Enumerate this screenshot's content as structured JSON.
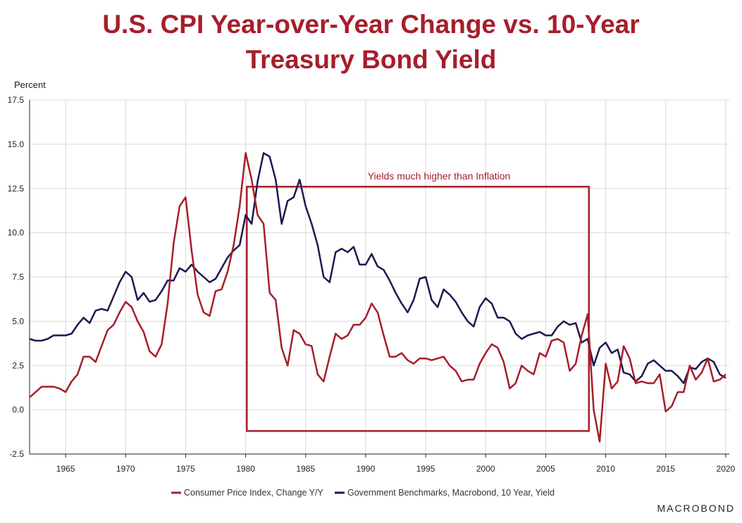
{
  "title_line1": "U.S. CPI Year-over-Year Change vs. 10-Year",
  "title_line2": "Treasury Bond Yield",
  "brand": "MACROBOND",
  "annotation": "Yields much higher than Inflation",
  "colors": {
    "cpi": "#a61e2b",
    "yield": "#1c1a4f",
    "title": "#a61e2b",
    "grid": "#d9d9d9"
  },
  "chart_data": {
    "type": "line",
    "ylabel": "Percent",
    "xlabel": "",
    "ylim": [
      -2.5,
      17.5
    ],
    "xlim": [
      1962.0,
      2020.3
    ],
    "yticks": [
      "17.5",
      "15.0",
      "12.5",
      "10.0",
      "7.5",
      "5.0",
      "2.5",
      "0.0",
      "-2.5"
    ],
    "ytick_values": [
      17.5,
      15.0,
      12.5,
      10.0,
      7.5,
      5.0,
      2.5,
      0.0,
      -2.5
    ],
    "xticks": [
      "1965",
      "1970",
      "1975",
      "1980",
      "1985",
      "1990",
      "1995",
      "2000",
      "2005",
      "2010",
      "2015",
      "2020"
    ],
    "xtick_values": [
      1965,
      1970,
      1975,
      1980,
      1985,
      1990,
      1995,
      2000,
      2005,
      2010,
      2015,
      2020
    ],
    "grid": true,
    "legend_position": "bottom",
    "annotation_box": {
      "x": [
        1980.1,
        2008.6
      ],
      "y": [
        -1.2,
        12.6
      ]
    },
    "series": [
      {
        "name": "Consumer Price Index, Change Y/Y",
        "color": "#a61e2b",
        "x": [
          1962.0,
          1962.5,
          1963.0,
          1963.5,
          1964.0,
          1964.5,
          1965.0,
          1965.5,
          1966.0,
          1966.5,
          1967.0,
          1967.5,
          1968.0,
          1968.5,
          1969.0,
          1969.5,
          1970.0,
          1970.5,
          1971.0,
          1971.5,
          1972.0,
          1972.5,
          1973.0,
          1973.5,
          1974.0,
          1974.5,
          1975.0,
          1975.5,
          1976.0,
          1976.5,
          1977.0,
          1977.5,
          1978.0,
          1978.5,
          1979.0,
          1979.5,
          1980.0,
          1980.5,
          1981.0,
          1981.5,
          1982.0,
          1982.5,
          1983.0,
          1983.5,
          1984.0,
          1984.5,
          1985.0,
          1985.5,
          1986.0,
          1986.5,
          1987.0,
          1987.5,
          1988.0,
          1988.5,
          1989.0,
          1989.5,
          1990.0,
          1990.5,
          1991.0,
          1991.5,
          1992.0,
          1992.5,
          1993.0,
          1993.5,
          1994.0,
          1994.5,
          1995.0,
          1995.5,
          1996.0,
          1996.5,
          1997.0,
          1997.5,
          1998.0,
          1998.5,
          1999.0,
          1999.5,
          2000.0,
          2000.5,
          2001.0,
          2001.5,
          2002.0,
          2002.5,
          2003.0,
          2003.5,
          2004.0,
          2004.5,
          2005.0,
          2005.5,
          2006.0,
          2006.5,
          2007.0,
          2007.5,
          2008.0,
          2008.5,
          2009.0,
          2009.5,
          2010.0,
          2010.5,
          2011.0,
          2011.5,
          2012.0,
          2012.5,
          2013.0,
          2013.5,
          2014.0,
          2014.5,
          2015.0,
          2015.5,
          2016.0,
          2016.5,
          2017.0,
          2017.5,
          2018.0,
          2018.5,
          2019.0,
          2019.5,
          2020.0
        ],
        "values": [
          0.7,
          1.0,
          1.3,
          1.3,
          1.3,
          1.2,
          1.0,
          1.6,
          2.0,
          3.0,
          3.0,
          2.7,
          3.6,
          4.5,
          4.8,
          5.5,
          6.1,
          5.8,
          5.0,
          4.4,
          3.3,
          3.0,
          3.7,
          6.0,
          9.4,
          11.5,
          12.0,
          9.0,
          6.5,
          5.5,
          5.3,
          6.7,
          6.8,
          7.8,
          9.3,
          11.5,
          14.5,
          13.0,
          11.0,
          10.5,
          6.6,
          6.2,
          3.5,
          2.5,
          4.5,
          4.3,
          3.7,
          3.6,
          2.0,
          1.6,
          3.0,
          4.3,
          4.0,
          4.2,
          4.8,
          4.8,
          5.2,
          6.0,
          5.5,
          4.2,
          3.0,
          3.0,
          3.2,
          2.8,
          2.6,
          2.9,
          2.9,
          2.8,
          2.9,
          3.0,
          2.5,
          2.2,
          1.6,
          1.7,
          1.7,
          2.6,
          3.2,
          3.7,
          3.5,
          2.7,
          1.2,
          1.5,
          2.5,
          2.2,
          2.0,
          3.2,
          3.0,
          3.9,
          4.0,
          3.8,
          2.2,
          2.6,
          4.2,
          5.4,
          0.0,
          -1.8,
          2.6,
          1.2,
          1.6,
          3.6,
          2.9,
          1.5,
          1.6,
          1.5,
          1.5,
          2.0,
          -0.1,
          0.2,
          1.0,
          1.0,
          2.5,
          1.7,
          2.1,
          2.9,
          1.6,
          1.7,
          2.0
        ]
      },
      {
        "name": "Government Benchmarks, Macrobond, 10 Year, Yield",
        "color": "#1c1a4f",
        "x": [
          1962.0,
          1962.5,
          1963.0,
          1963.5,
          1964.0,
          1964.5,
          1965.0,
          1965.5,
          1966.0,
          1966.5,
          1967.0,
          1967.5,
          1968.0,
          1968.5,
          1969.0,
          1969.5,
          1970.0,
          1970.5,
          1971.0,
          1971.5,
          1972.0,
          1972.5,
          1973.0,
          1973.5,
          1974.0,
          1974.5,
          1975.0,
          1975.5,
          1976.0,
          1976.5,
          1977.0,
          1977.5,
          1978.0,
          1978.5,
          1979.0,
          1979.5,
          1980.0,
          1980.5,
          1981.0,
          1981.5,
          1982.0,
          1982.5,
          1983.0,
          1983.5,
          1984.0,
          1984.5,
          1985.0,
          1985.5,
          1986.0,
          1986.5,
          1987.0,
          1987.5,
          1988.0,
          1988.5,
          1989.0,
          1989.5,
          1990.0,
          1990.5,
          1991.0,
          1991.5,
          1992.0,
          1992.5,
          1993.0,
          1993.5,
          1994.0,
          1994.5,
          1995.0,
          1995.5,
          1996.0,
          1996.5,
          1997.0,
          1997.5,
          1998.0,
          1998.5,
          1999.0,
          1999.5,
          2000.0,
          2000.5,
          2001.0,
          2001.5,
          2002.0,
          2002.5,
          2003.0,
          2003.5,
          2004.0,
          2004.5,
          2005.0,
          2005.5,
          2006.0,
          2006.5,
          2007.0,
          2007.5,
          2008.0,
          2008.5,
          2009.0,
          2009.5,
          2010.0,
          2010.5,
          2011.0,
          2011.5,
          2012.0,
          2012.5,
          2013.0,
          2013.5,
          2014.0,
          2014.5,
          2015.0,
          2015.5,
          2016.0,
          2016.5,
          2017.0,
          2017.5,
          2018.0,
          2018.5,
          2019.0,
          2019.5,
          2020.0
        ],
        "values": [
          4.0,
          3.9,
          3.9,
          4.0,
          4.2,
          4.2,
          4.2,
          4.3,
          4.8,
          5.2,
          4.9,
          5.6,
          5.7,
          5.6,
          6.4,
          7.2,
          7.8,
          7.5,
          6.2,
          6.6,
          6.1,
          6.2,
          6.7,
          7.3,
          7.3,
          8.0,
          7.8,
          8.2,
          7.8,
          7.5,
          7.2,
          7.4,
          8.0,
          8.6,
          9.0,
          9.3,
          11.0,
          10.5,
          12.9,
          14.5,
          14.3,
          13.0,
          10.5,
          11.8,
          12.0,
          13.0,
          11.5,
          10.5,
          9.3,
          7.5,
          7.2,
          8.9,
          9.1,
          8.9,
          9.2,
          8.2,
          8.2,
          8.8,
          8.1,
          7.9,
          7.3,
          6.6,
          6.0,
          5.5,
          6.2,
          7.4,
          7.5,
          6.2,
          5.8,
          6.8,
          6.5,
          6.1,
          5.5,
          5.0,
          4.7,
          5.8,
          6.3,
          6.0,
          5.2,
          5.2,
          5.0,
          4.3,
          4.0,
          4.2,
          4.3,
          4.4,
          4.2,
          4.2,
          4.7,
          5.0,
          4.8,
          4.9,
          3.8,
          4.0,
          2.5,
          3.5,
          3.8,
          3.2,
          3.4,
          2.1,
          2.0,
          1.6,
          1.9,
          2.6,
          2.8,
          2.5,
          2.2,
          2.2,
          1.9,
          1.5,
          2.4,
          2.3,
          2.7,
          2.9,
          2.7,
          2.0,
          1.8
        ]
      }
    ]
  }
}
